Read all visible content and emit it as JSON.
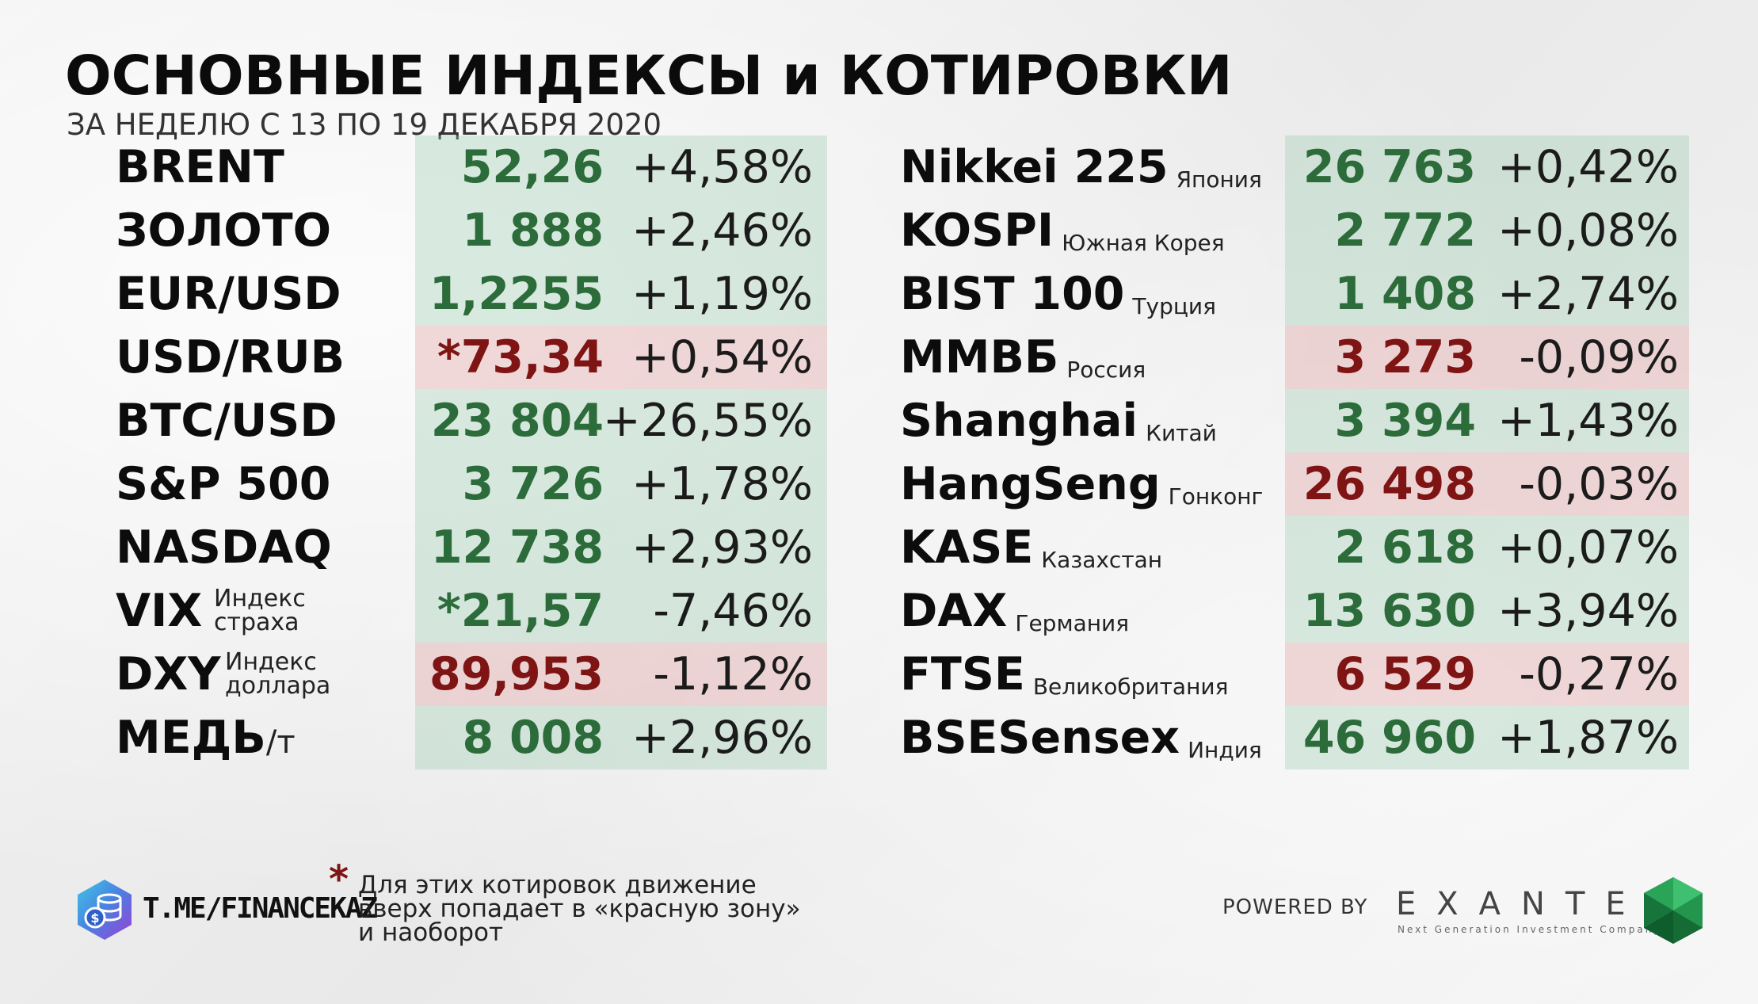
{
  "header": {
    "title": "ОСНОВНЫЕ ИНДЕКСЫ и КОТИРОВКИ",
    "subtitle": "ЗА НЕДЕЛЮ С 13 ПО 19 ДЕКАБРЯ 2020"
  },
  "colors": {
    "up_text": "#2c6b3a",
    "down_text": "#7e1414",
    "up_band": "#c9e0d1",
    "down_band": "#ecc9c9"
  },
  "left_rows": [
    {
      "name": "BRENT",
      "value": "52,26",
      "change": "+4,58%",
      "zone": "green",
      "value_color": "up"
    },
    {
      "name": "ЗОЛОТО",
      "value": "1 888",
      "change": "+2,46%",
      "zone": "green",
      "value_color": "up"
    },
    {
      "name": "EUR/USD",
      "value": "1,2255",
      "change": "+1,19%",
      "zone": "green",
      "value_color": "up"
    },
    {
      "name": "USD/RUB",
      "value": "*73,34",
      "change": "+0,54%",
      "zone": "red",
      "value_color": "down"
    },
    {
      "name": "BTC/USD",
      "value": "23 804",
      "change": "+26,55%",
      "zone": "green",
      "value_color": "up"
    },
    {
      "name": "S&P 500",
      "value": "3 726",
      "change": "+1,78%",
      "zone": "green",
      "value_color": "up"
    },
    {
      "name": "NASDAQ",
      "value": "12 738",
      "change": "+2,93%",
      "zone": "green",
      "value_color": "up"
    },
    {
      "name": "VIX",
      "sub_line1": "Индекс",
      "sub_line2": "страха",
      "value": "*21,57",
      "change": "-7,46%",
      "zone": "green",
      "value_color": "up"
    },
    {
      "name": "DXY",
      "sub_line1": "Индекс",
      "sub_line2": "доллара",
      "value": "89,953",
      "change": "-1,12%",
      "zone": "red",
      "value_color": "down"
    },
    {
      "name": "МЕДЬ",
      "unit": "/т",
      "value": "8 008",
      "change": "+2,96%",
      "zone": "green",
      "value_color": "up"
    }
  ],
  "right_rows": [
    {
      "name": "Nikkei 225",
      "country": "Япония",
      "value": "26 763",
      "change": "+0,42%",
      "zone": "green",
      "value_color": "up"
    },
    {
      "name": "KOSPI",
      "country": "Южная Корея",
      "value": "2 772",
      "change": "+0,08%",
      "zone": "green",
      "value_color": "up"
    },
    {
      "name": "BIST 100",
      "country": "Турция",
      "value": "1 408",
      "change": "+2,74%",
      "zone": "green",
      "value_color": "up"
    },
    {
      "name": "ММВБ",
      "country": "Россия",
      "value": "3 273",
      "change": "-0,09%",
      "zone": "red",
      "value_color": "down"
    },
    {
      "name": "Shanghai",
      "country": "Китай",
      "value": "3 394",
      "change": "+1,43%",
      "zone": "green",
      "value_color": "up"
    },
    {
      "name": "HangSeng",
      "country": "Гонконг",
      "value": "26 498",
      "change": "-0,03%",
      "zone": "red",
      "value_color": "down"
    },
    {
      "name": "KASE",
      "country": "Казахстан",
      "value": "2 618",
      "change": "+0,07%",
      "zone": "green",
      "value_color": "up"
    },
    {
      "name": "DAX",
      "country": "Германия",
      "value": "13 630",
      "change": "+3,94%",
      "zone": "green",
      "value_color": "up"
    },
    {
      "name": "FTSE",
      "country": "Великобритания",
      "value": "6 529",
      "change": "-0,27%",
      "zone": "red",
      "value_color": "down"
    },
    {
      "name": "BSESensex",
      "country": "Индия",
      "value": "46 960",
      "change": "+1,87%",
      "zone": "green",
      "value_color": "up"
    }
  ],
  "footer": {
    "link": "T.ME/FINANCEKAZ",
    "logo_icon": "coins-database-icon",
    "asterisk": "*",
    "note_line1": "Для этих котировок движение",
    "note_line2": "вверх попадает в «красную зону»",
    "note_line3": "и наоборот",
    "powered_by": "POWERED BY",
    "brand": "EXANTE",
    "brand_tagline": "Next Generation Investment Company",
    "brand_icon": "green-gem-icon"
  }
}
